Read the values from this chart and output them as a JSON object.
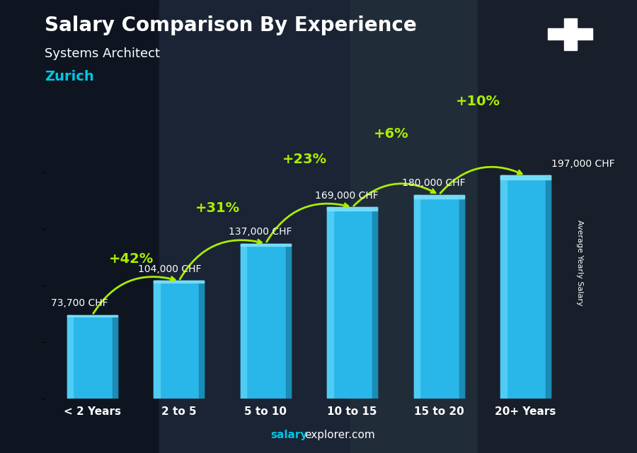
{
  "title": "Salary Comparison By Experience",
  "subtitle": "Systems Architect",
  "location": "Zurich",
  "categories": [
    "< 2 Years",
    "2 to 5",
    "5 to 10",
    "10 to 15",
    "15 to 20",
    "20+ Years"
  ],
  "values": [
    73700,
    104000,
    137000,
    169000,
    180000,
    197000
  ],
  "value_labels": [
    "73,700 CHF",
    "104,000 CHF",
    "137,000 CHF",
    "169,000 CHF",
    "180,000 CHF",
    "197,000 CHF"
  ],
  "pct_changes": [
    "+42%",
    "+31%",
    "+23%",
    "+6%",
    "+10%"
  ],
  "bar_main": "#29b6e8",
  "bar_left_highlight": "#55d0f5",
  "bar_right_shadow": "#1a88b0",
  "bar_top": "#7de0f8",
  "background_color": "#1c2333",
  "text_color_white": "#ffffff",
  "text_color_cyan": "#00c8e0",
  "text_color_green": "#aaee00",
  "ylabel": "Average Yearly Salary",
  "footer_salary": "salary",
  "footer_rest": "explorer.com",
  "ylim": [
    0,
    240000
  ],
  "flag_bg": "#e8002d",
  "flag_cross": "#ffffff",
  "bar_width": 0.58,
  "val_label_fontsize": 10,
  "pct_fontsize": 14,
  "cat_fontsize": 11
}
